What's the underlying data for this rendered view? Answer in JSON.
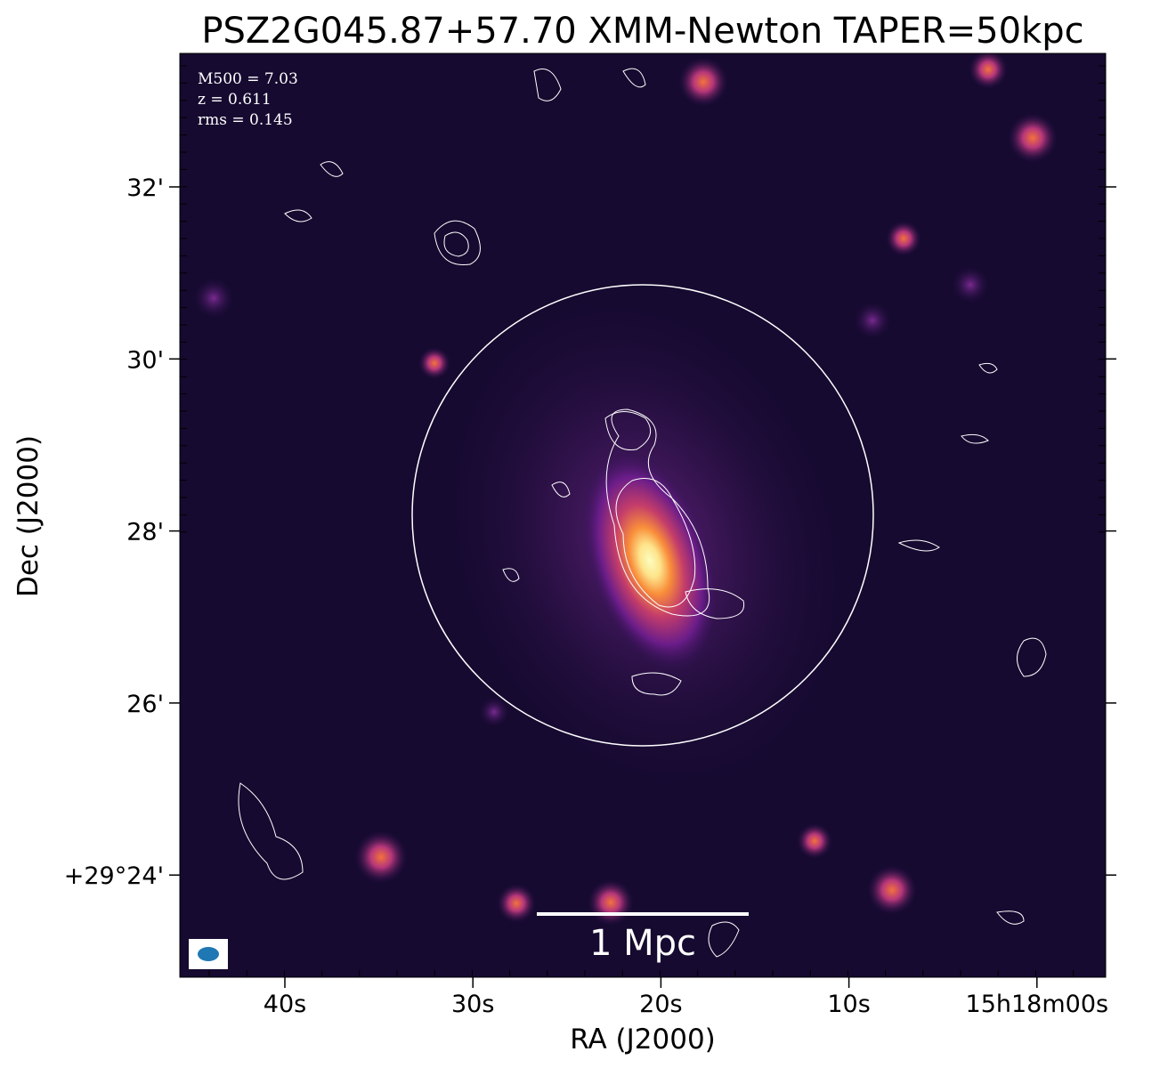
{
  "title": "PSZ2G045.87+57.70 XMM-Newton TAPER=50kpc",
  "x_axis": {
    "label": "RA (J2000)",
    "tick_labels": [
      "40s",
      "30s",
      "20s",
      "10s",
      "15h18m00s"
    ]
  },
  "y_axis": {
    "label": "Dec (J2000)",
    "tick_labels": [
      "32'",
      "30'",
      "28'",
      "26'",
      "+29°24'"
    ]
  },
  "annotations": [
    "M500 = 7.03",
    "z = 0.611",
    "rms = 0.145"
  ],
  "scale_bar": "1 Mpc"
}
